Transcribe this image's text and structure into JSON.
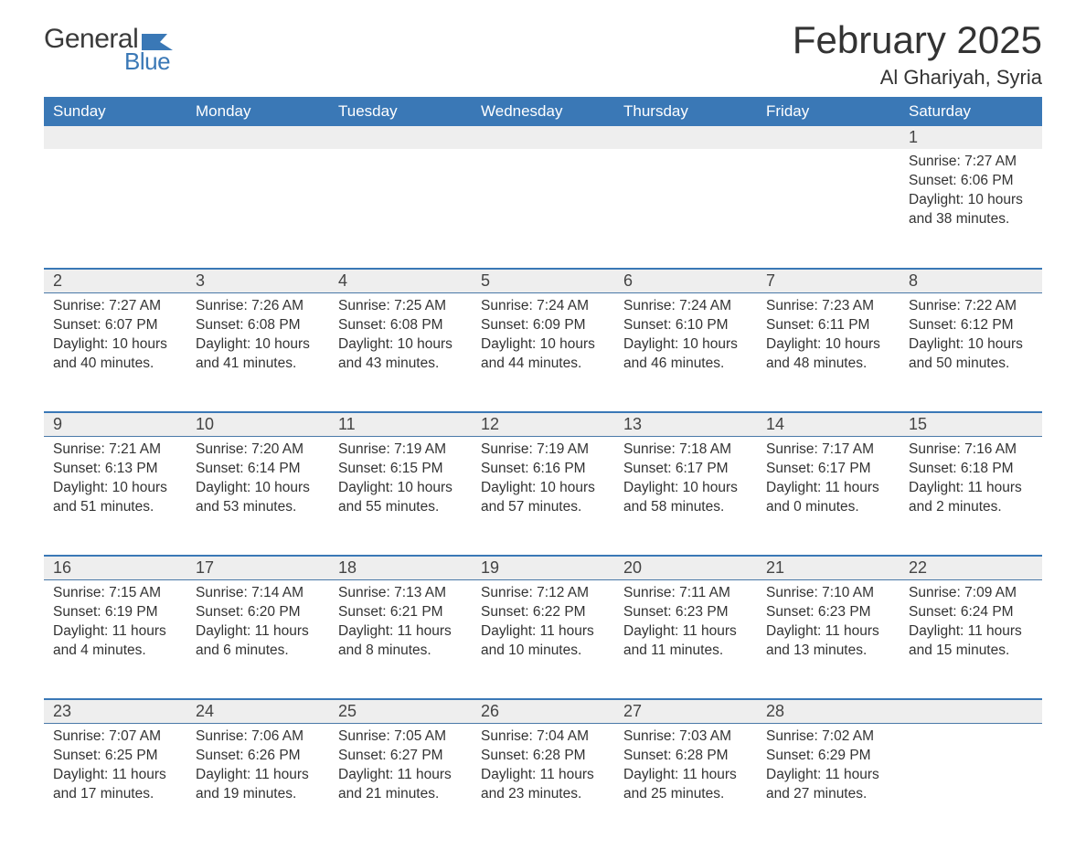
{
  "colors": {
    "header_bg": "#3a78b6",
    "header_text": "#ffffff",
    "row_border": "#3a78b6",
    "daynum_bg": "#eeeeee",
    "body_text": "#333333",
    "logo_gray": "#3a3a3a",
    "logo_blue": "#3a78b6",
    "background": "#ffffff"
  },
  "typography": {
    "title_fontsize": 42,
    "location_fontsize": 22,
    "weekday_fontsize": 17,
    "daynum_fontsize": 18,
    "body_fontsize": 15.5,
    "font_family": "Segoe UI, Arial, sans-serif"
  },
  "logo": {
    "line1": "General",
    "line2": "Blue",
    "flag_color": "#3a78b6"
  },
  "title": "February 2025",
  "location": "Al Ghariyah, Syria",
  "weekdays": [
    "Sunday",
    "Monday",
    "Tuesday",
    "Wednesday",
    "Thursday",
    "Friday",
    "Saturday"
  ],
  "labels": {
    "sunrise": "Sunrise:",
    "sunset": "Sunset:",
    "daylight": "Daylight:"
  },
  "weeks": [
    [
      null,
      null,
      null,
      null,
      null,
      null,
      {
        "day": "1",
        "sunrise": "7:27 AM",
        "sunset": "6:06 PM",
        "daylight": "10 hours and 38 minutes."
      }
    ],
    [
      {
        "day": "2",
        "sunrise": "7:27 AM",
        "sunset": "6:07 PM",
        "daylight": "10 hours and 40 minutes."
      },
      {
        "day": "3",
        "sunrise": "7:26 AM",
        "sunset": "6:08 PM",
        "daylight": "10 hours and 41 minutes."
      },
      {
        "day": "4",
        "sunrise": "7:25 AM",
        "sunset": "6:08 PM",
        "daylight": "10 hours and 43 minutes."
      },
      {
        "day": "5",
        "sunrise": "7:24 AM",
        "sunset": "6:09 PM",
        "daylight": "10 hours and 44 minutes."
      },
      {
        "day": "6",
        "sunrise": "7:24 AM",
        "sunset": "6:10 PM",
        "daylight": "10 hours and 46 minutes."
      },
      {
        "day": "7",
        "sunrise": "7:23 AM",
        "sunset": "6:11 PM",
        "daylight": "10 hours and 48 minutes."
      },
      {
        "day": "8",
        "sunrise": "7:22 AM",
        "sunset": "6:12 PM",
        "daylight": "10 hours and 50 minutes."
      }
    ],
    [
      {
        "day": "9",
        "sunrise": "7:21 AM",
        "sunset": "6:13 PM",
        "daylight": "10 hours and 51 minutes."
      },
      {
        "day": "10",
        "sunrise": "7:20 AM",
        "sunset": "6:14 PM",
        "daylight": "10 hours and 53 minutes."
      },
      {
        "day": "11",
        "sunrise": "7:19 AM",
        "sunset": "6:15 PM",
        "daylight": "10 hours and 55 minutes."
      },
      {
        "day": "12",
        "sunrise": "7:19 AM",
        "sunset": "6:16 PM",
        "daylight": "10 hours and 57 minutes."
      },
      {
        "day": "13",
        "sunrise": "7:18 AM",
        "sunset": "6:17 PM",
        "daylight": "10 hours and 58 minutes."
      },
      {
        "day": "14",
        "sunrise": "7:17 AM",
        "sunset": "6:17 PM",
        "daylight": "11 hours and 0 minutes."
      },
      {
        "day": "15",
        "sunrise": "7:16 AM",
        "sunset": "6:18 PM",
        "daylight": "11 hours and 2 minutes."
      }
    ],
    [
      {
        "day": "16",
        "sunrise": "7:15 AM",
        "sunset": "6:19 PM",
        "daylight": "11 hours and 4 minutes."
      },
      {
        "day": "17",
        "sunrise": "7:14 AM",
        "sunset": "6:20 PM",
        "daylight": "11 hours and 6 minutes."
      },
      {
        "day": "18",
        "sunrise": "7:13 AM",
        "sunset": "6:21 PM",
        "daylight": "11 hours and 8 minutes."
      },
      {
        "day": "19",
        "sunrise": "7:12 AM",
        "sunset": "6:22 PM",
        "daylight": "11 hours and 10 minutes."
      },
      {
        "day": "20",
        "sunrise": "7:11 AM",
        "sunset": "6:23 PM",
        "daylight": "11 hours and 11 minutes."
      },
      {
        "day": "21",
        "sunrise": "7:10 AM",
        "sunset": "6:23 PM",
        "daylight": "11 hours and 13 minutes."
      },
      {
        "day": "22",
        "sunrise": "7:09 AM",
        "sunset": "6:24 PM",
        "daylight": "11 hours and 15 minutes."
      }
    ],
    [
      {
        "day": "23",
        "sunrise": "7:07 AM",
        "sunset": "6:25 PM",
        "daylight": "11 hours and 17 minutes."
      },
      {
        "day": "24",
        "sunrise": "7:06 AM",
        "sunset": "6:26 PM",
        "daylight": "11 hours and 19 minutes."
      },
      {
        "day": "25",
        "sunrise": "7:05 AM",
        "sunset": "6:27 PM",
        "daylight": "11 hours and 21 minutes."
      },
      {
        "day": "26",
        "sunrise": "7:04 AM",
        "sunset": "6:28 PM",
        "daylight": "11 hours and 23 minutes."
      },
      {
        "day": "27",
        "sunrise": "7:03 AM",
        "sunset": "6:28 PM",
        "daylight": "11 hours and 25 minutes."
      },
      {
        "day": "28",
        "sunrise": "7:02 AM",
        "sunset": "6:29 PM",
        "daylight": "11 hours and 27 minutes."
      },
      null
    ]
  ]
}
